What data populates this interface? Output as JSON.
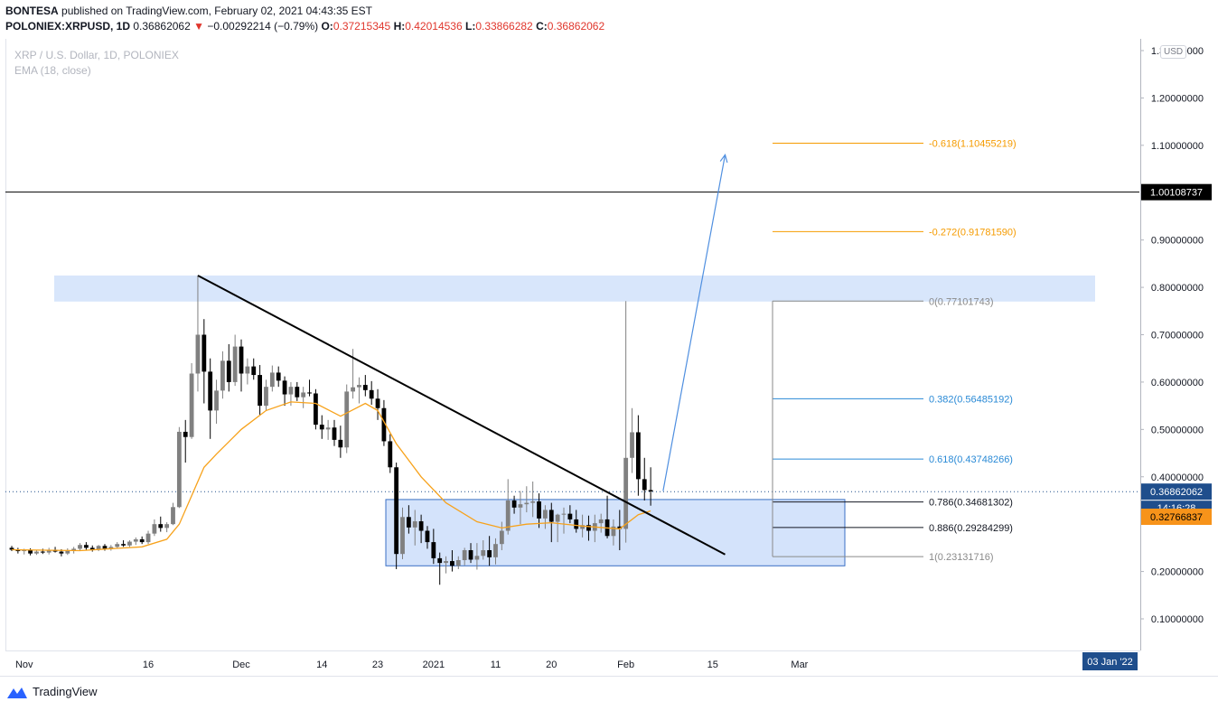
{
  "header": {
    "publisher": "BONTESA",
    "published_text": "published on TradingView.com, February 02, 2021 04:43:35 EST",
    "symbol": "POLONIEX:XRPUSD, 1D",
    "last": "0.36862062",
    "change_arrow": "▼",
    "change": "−0.00292214 (−0.79%)",
    "o_label": "O:",
    "o": "0.37215345",
    "h_label": "H:",
    "h": "0.42014536",
    "l_label": "L:",
    "l": "0.33866282",
    "c_label": "C:",
    "c": "0.36862062"
  },
  "legend": {
    "title": "XRP / U.S. Dollar, 1D, POLONIEX",
    "indicator": "EMA (18, close)"
  },
  "currency_button": "USD",
  "price_axis": {
    "ticks": [
      "1.30000000",
      "1.20000000",
      "1.10000000",
      "0.90000000",
      "0.80000000",
      "0.70000000",
      "0.60000000",
      "0.50000000",
      "0.40000000",
      "0.20000000",
      "0.10000000"
    ],
    "markers": {
      "resistance": "1.00108737",
      "last_price": "0.36862062",
      "countdown": "14:16:28",
      "ema": "0.32766837"
    }
  },
  "time_axis": {
    "labels": [
      "Nov",
      "16",
      "Dec",
      "14",
      "23",
      "2021",
      "11",
      "20",
      "Feb",
      "15",
      "Mar"
    ],
    "cursor_label": "03 Jan '22"
  },
  "fib_levels": [
    {
      "label": "-0.618(1.10455219)",
      "value": 1.10455219
    },
    {
      "label": "-0.272(0.91781590)",
      "value": 0.9178159
    },
    {
      "label": "0(0.77101743)",
      "value": 0.77101743
    },
    {
      "label": "0.382(0.56485192)",
      "value": 0.56485192
    },
    {
      "label": "0.618(0.43748266)",
      "value": 0.43748266
    },
    {
      "label": "0.786(0.34681302)",
      "value": 0.34681302
    },
    {
      "label": "0.886(0.29284299)",
      "value": 0.29284299
    },
    {
      "label": "1(0.23131716)",
      "value": 0.23131716
    }
  ],
  "colors": {
    "up_candle": "#808080",
    "down_candle": "#000000",
    "ema": "#f7a21b",
    "zone": "#d4e3fb",
    "fib_orange": "#f59b00",
    "fib_blue": "#2a8ad6",
    "fib_black": "#131722",
    "fib_grey": "#8a8a8a",
    "arrow": "#4f8fe0",
    "price_marker": "#1f4e8c",
    "ema_marker": "#f7931a"
  },
  "chart_data": {
    "type": "candlestick",
    "symbol": "XRP / U.S. Dollar",
    "interval": "1D",
    "ylim": [
      0.0,
      1.32
    ],
    "resistance_level": 1.00108737,
    "x_start": "2020-10-25",
    "x_end": "2021-03-15",
    "supply_zone": {
      "from": "2020-10-31",
      "to": "2021-02-15",
      "low": 0.77,
      "high": 0.825
    },
    "demand_zone": {
      "from": "2020-12-15",
      "to": "2021-02-11",
      "low": 0.212,
      "high": 0.352
    },
    "trendline": {
      "from": {
        "date": "2020-11-24",
        "price": 0.825
      },
      "to": {
        "date": "2021-02-17",
        "price": 0.236
      }
    },
    "projection_arrow": {
      "from": {
        "date": "2021-02-07",
        "price": 0.37
      },
      "to": {
        "date": "2021-02-17",
        "price": 1.08
      }
    },
    "fib_anchor": {
      "date": "2021-02-01",
      "high": 0.77101743,
      "low": 0.23131716
    },
    "candles": [
      {
        "date": "2020-10-25",
        "open": 0.25,
        "high": 0.254,
        "low": 0.243,
        "close": 0.246
      },
      {
        "date": "2020-10-26",
        "open": 0.246,
        "high": 0.25,
        "low": 0.238,
        "close": 0.243
      },
      {
        "date": "2020-10-27",
        "open": 0.243,
        "high": 0.248,
        "low": 0.236,
        "close": 0.245
      },
      {
        "date": "2020-10-28",
        "open": 0.245,
        "high": 0.249,
        "low": 0.234,
        "close": 0.238
      },
      {
        "date": "2020-10-29",
        "open": 0.238,
        "high": 0.246,
        "low": 0.235,
        "close": 0.242
      },
      {
        "date": "2020-10-30",
        "open": 0.242,
        "high": 0.248,
        "low": 0.237,
        "close": 0.24
      },
      {
        "date": "2020-10-31",
        "open": 0.24,
        "high": 0.25,
        "low": 0.236,
        "close": 0.246
      },
      {
        "date": "2020-11-01",
        "open": 0.246,
        "high": 0.252,
        "low": 0.24,
        "close": 0.242
      },
      {
        "date": "2020-11-02",
        "open": 0.242,
        "high": 0.247,
        "low": 0.232,
        "close": 0.238
      },
      {
        "date": "2020-11-03",
        "open": 0.238,
        "high": 0.249,
        "low": 0.235,
        "close": 0.245
      },
      {
        "date": "2020-11-04",
        "open": 0.245,
        "high": 0.252,
        "low": 0.238,
        "close": 0.248
      },
      {
        "date": "2020-11-05",
        "open": 0.248,
        "high": 0.26,
        "low": 0.244,
        "close": 0.256
      },
      {
        "date": "2020-11-06",
        "open": 0.256,
        "high": 0.262,
        "low": 0.246,
        "close": 0.25
      },
      {
        "date": "2020-11-07",
        "open": 0.25,
        "high": 0.255,
        "low": 0.242,
        "close": 0.246
      },
      {
        "date": "2020-11-08",
        "open": 0.246,
        "high": 0.256,
        "low": 0.243,
        "close": 0.254
      },
      {
        "date": "2020-11-09",
        "open": 0.254,
        "high": 0.258,
        "low": 0.244,
        "close": 0.248
      },
      {
        "date": "2020-11-10",
        "open": 0.248,
        "high": 0.256,
        "low": 0.244,
        "close": 0.252
      },
      {
        "date": "2020-11-11",
        "open": 0.252,
        "high": 0.262,
        "low": 0.248,
        "close": 0.258
      },
      {
        "date": "2020-11-12",
        "open": 0.258,
        "high": 0.266,
        "low": 0.252,
        "close": 0.255
      },
      {
        "date": "2020-11-13",
        "open": 0.255,
        "high": 0.266,
        "low": 0.252,
        "close": 0.263
      },
      {
        "date": "2020-11-14",
        "open": 0.263,
        "high": 0.272,
        "low": 0.256,
        "close": 0.268
      },
      {
        "date": "2020-11-15",
        "open": 0.268,
        "high": 0.274,
        "low": 0.258,
        "close": 0.262
      },
      {
        "date": "2020-11-16",
        "open": 0.262,
        "high": 0.286,
        "low": 0.258,
        "close": 0.28
      },
      {
        "date": "2020-11-17",
        "open": 0.28,
        "high": 0.31,
        "low": 0.275,
        "close": 0.3
      },
      {
        "date": "2020-11-18",
        "open": 0.3,
        "high": 0.316,
        "low": 0.284,
        "close": 0.292
      },
      {
        "date": "2020-11-19",
        "open": 0.292,
        "high": 0.304,
        "low": 0.283,
        "close": 0.3
      },
      {
        "date": "2020-11-20",
        "open": 0.3,
        "high": 0.345,
        "low": 0.298,
        "close": 0.336
      },
      {
        "date": "2020-11-21",
        "open": 0.336,
        "high": 0.505,
        "low": 0.334,
        "close": 0.495
      },
      {
        "date": "2020-11-22",
        "open": 0.495,
        "high": 0.52,
        "low": 0.43,
        "close": 0.484
      },
      {
        "date": "2020-11-23",
        "open": 0.484,
        "high": 0.64,
        "low": 0.48,
        "close": 0.618
      },
      {
        "date": "2020-11-24",
        "open": 0.618,
        "high": 0.825,
        "low": 0.58,
        "close": 0.7
      },
      {
        "date": "2020-11-25",
        "open": 0.7,
        "high": 0.733,
        "low": 0.555,
        "close": 0.622
      },
      {
        "date": "2020-11-26",
        "open": 0.622,
        "high": 0.65,
        "low": 0.48,
        "close": 0.54
      },
      {
        "date": "2020-11-27",
        "open": 0.54,
        "high": 0.605,
        "low": 0.512,
        "close": 0.582
      },
      {
        "date": "2020-11-28",
        "open": 0.582,
        "high": 0.665,
        "low": 0.565,
        "close": 0.645
      },
      {
        "date": "2020-11-29",
        "open": 0.645,
        "high": 0.68,
        "low": 0.58,
        "close": 0.6
      },
      {
        "date": "2020-11-30",
        "open": 0.6,
        "high": 0.7,
        "low": 0.592,
        "close": 0.675
      },
      {
        "date": "2020-12-01",
        "open": 0.675,
        "high": 0.69,
        "low": 0.58,
        "close": 0.618
      },
      {
        "date": "2020-12-02",
        "open": 0.618,
        "high": 0.65,
        "low": 0.595,
        "close": 0.633
      },
      {
        "date": "2020-12-03",
        "open": 0.633,
        "high": 0.65,
        "low": 0.605,
        "close": 0.615
      },
      {
        "date": "2020-12-04",
        "open": 0.615,
        "high": 0.636,
        "low": 0.53,
        "close": 0.55
      },
      {
        "date": "2020-12-05",
        "open": 0.55,
        "high": 0.605,
        "low": 0.54,
        "close": 0.59
      },
      {
        "date": "2020-12-06",
        "open": 0.59,
        "high": 0.635,
        "low": 0.58,
        "close": 0.62
      },
      {
        "date": "2020-12-07",
        "open": 0.62,
        "high": 0.633,
        "low": 0.59,
        "close": 0.603
      },
      {
        "date": "2020-12-08",
        "open": 0.603,
        "high": 0.612,
        "low": 0.55,
        "close": 0.574
      },
      {
        "date": "2020-12-09",
        "open": 0.574,
        "high": 0.6,
        "low": 0.55,
        "close": 0.59
      },
      {
        "date": "2020-12-10",
        "open": 0.59,
        "high": 0.6,
        "low": 0.56,
        "close": 0.568
      },
      {
        "date": "2020-12-11",
        "open": 0.568,
        "high": 0.59,
        "low": 0.545,
        "close": 0.578
      },
      {
        "date": "2020-12-12",
        "open": 0.578,
        "high": 0.605,
        "low": 0.57,
        "close": 0.576
      },
      {
        "date": "2020-12-13",
        "open": 0.576,
        "high": 0.585,
        "low": 0.5,
        "close": 0.51
      },
      {
        "date": "2020-12-14",
        "open": 0.51,
        "high": 0.53,
        "low": 0.48,
        "close": 0.5
      },
      {
        "date": "2020-12-15",
        "open": 0.5,
        "high": 0.52,
        "low": 0.478,
        "close": 0.504
      },
      {
        "date": "2020-12-16",
        "open": 0.504,
        "high": 0.52,
        "low": 0.465,
        "close": 0.478
      },
      {
        "date": "2020-12-17",
        "open": 0.478,
        "high": 0.508,
        "low": 0.44,
        "close": 0.462
      },
      {
        "date": "2020-12-18",
        "open": 0.462,
        "high": 0.595,
        "low": 0.45,
        "close": 0.58
      },
      {
        "date": "2020-12-19",
        "open": 0.58,
        "high": 0.67,
        "low": 0.565,
        "close": 0.589
      },
      {
        "date": "2020-12-20",
        "open": 0.589,
        "high": 0.61,
        "low": 0.555,
        "close": 0.594
      },
      {
        "date": "2020-12-21",
        "open": 0.594,
        "high": 0.615,
        "low": 0.57,
        "close": 0.583
      },
      {
        "date": "2020-12-22",
        "open": 0.583,
        "high": 0.602,
        "low": 0.552,
        "close": 0.565
      },
      {
        "date": "2020-12-23",
        "open": 0.565,
        "high": 0.585,
        "low": 0.52,
        "close": 0.545
      },
      {
        "date": "2020-12-24",
        "open": 0.545,
        "high": 0.562,
        "low": 0.465,
        "close": 0.475
      },
      {
        "date": "2020-12-25",
        "open": 0.475,
        "high": 0.49,
        "low": 0.408,
        "close": 0.42
      },
      {
        "date": "2020-12-26",
        "open": 0.42,
        "high": 0.43,
        "low": 0.205,
        "close": 0.237
      },
      {
        "date": "2020-12-27",
        "open": 0.237,
        "high": 0.335,
        "low": 0.226,
        "close": 0.315
      },
      {
        "date": "2020-12-28",
        "open": 0.315,
        "high": 0.34,
        "low": 0.28,
        "close": 0.293
      },
      {
        "date": "2020-12-29",
        "open": 0.293,
        "high": 0.33,
        "low": 0.255,
        "close": 0.306
      },
      {
        "date": "2020-12-30",
        "open": 0.306,
        "high": 0.32,
        "low": 0.26,
        "close": 0.286
      },
      {
        "date": "2020-12-31",
        "open": 0.286,
        "high": 0.296,
        "low": 0.248,
        "close": 0.262
      },
      {
        "date": "2021-01-01",
        "open": 0.262,
        "high": 0.29,
        "low": 0.216,
        "close": 0.228
      },
      {
        "date": "2021-01-02",
        "open": 0.228,
        "high": 0.24,
        "low": 0.172,
        "close": 0.218
      },
      {
        "date": "2021-01-03",
        "open": 0.218,
        "high": 0.232,
        "low": 0.196,
        "close": 0.222
      },
      {
        "date": "2021-01-04",
        "open": 0.222,
        "high": 0.245,
        "low": 0.2,
        "close": 0.212
      },
      {
        "date": "2021-01-05",
        "open": 0.212,
        "high": 0.232,
        "low": 0.205,
        "close": 0.224
      },
      {
        "date": "2021-01-06",
        "open": 0.224,
        "high": 0.25,
        "low": 0.213,
        "close": 0.245
      },
      {
        "date": "2021-01-07",
        "open": 0.245,
        "high": 0.26,
        "low": 0.218,
        "close": 0.225
      },
      {
        "date": "2021-01-08",
        "open": 0.225,
        "high": 0.26,
        "low": 0.204,
        "close": 0.233
      },
      {
        "date": "2021-01-09",
        "open": 0.233,
        "high": 0.266,
        "low": 0.225,
        "close": 0.245
      },
      {
        "date": "2021-01-10",
        "open": 0.245,
        "high": 0.275,
        "low": 0.212,
        "close": 0.23
      },
      {
        "date": "2021-01-11",
        "open": 0.23,
        "high": 0.27,
        "low": 0.215,
        "close": 0.258
      },
      {
        "date": "2021-01-12",
        "open": 0.258,
        "high": 0.305,
        "low": 0.245,
        "close": 0.286
      },
      {
        "date": "2021-01-13",
        "open": 0.286,
        "high": 0.395,
        "low": 0.278,
        "close": 0.35
      },
      {
        "date": "2021-01-14",
        "open": 0.35,
        "high": 0.36,
        "low": 0.322,
        "close": 0.335
      },
      {
        "date": "2021-01-15",
        "open": 0.335,
        "high": 0.37,
        "low": 0.3,
        "close": 0.342
      },
      {
        "date": "2021-01-16",
        "open": 0.342,
        "high": 0.38,
        "low": 0.325,
        "close": 0.345
      },
      {
        "date": "2021-01-17",
        "open": 0.345,
        "high": 0.39,
        "low": 0.315,
        "close": 0.348
      },
      {
        "date": "2021-01-18",
        "open": 0.348,
        "high": 0.365,
        "low": 0.292,
        "close": 0.312
      },
      {
        "date": "2021-01-19",
        "open": 0.312,
        "high": 0.34,
        "low": 0.29,
        "close": 0.33
      },
      {
        "date": "2021-01-20",
        "open": 0.33,
        "high": 0.345,
        "low": 0.262,
        "close": 0.305
      },
      {
        "date": "2021-01-21",
        "open": 0.305,
        "high": 0.322,
        "low": 0.262,
        "close": 0.32
      },
      {
        "date": "2021-01-22",
        "open": 0.32,
        "high": 0.335,
        "low": 0.28,
        "close": 0.322
      },
      {
        "date": "2021-01-23",
        "open": 0.322,
        "high": 0.34,
        "low": 0.302,
        "close": 0.31
      },
      {
        "date": "2021-01-24",
        "open": 0.31,
        "high": 0.33,
        "low": 0.282,
        "close": 0.29
      },
      {
        "date": "2021-01-25",
        "open": 0.29,
        "high": 0.32,
        "low": 0.272,
        "close": 0.298
      },
      {
        "date": "2021-01-26",
        "open": 0.298,
        "high": 0.318,
        "low": 0.265,
        "close": 0.286
      },
      {
        "date": "2021-01-27",
        "open": 0.286,
        "high": 0.32,
        "low": 0.262,
        "close": 0.302
      },
      {
        "date": "2021-01-28",
        "open": 0.302,
        "high": 0.322,
        "low": 0.282,
        "close": 0.31
      },
      {
        "date": "2021-01-29",
        "open": 0.31,
        "high": 0.36,
        "low": 0.27,
        "close": 0.275
      },
      {
        "date": "2021-01-30",
        "open": 0.275,
        "high": 0.31,
        "low": 0.255,
        "close": 0.295
      },
      {
        "date": "2021-01-31",
        "open": 0.295,
        "high": 0.33,
        "low": 0.245,
        "close": 0.29
      },
      {
        "date": "2021-02-01",
        "open": 0.29,
        "high": 0.771,
        "low": 0.261,
        "close": 0.44
      },
      {
        "date": "2021-02-02",
        "open": 0.44,
        "high": 0.545,
        "low": 0.408,
        "close": 0.494
      },
      {
        "date": "2021-02-03",
        "open": 0.494,
        "high": 0.53,
        "low": 0.36,
        "close": 0.395
      },
      {
        "date": "2021-02-04",
        "open": 0.395,
        "high": 0.44,
        "low": 0.35,
        "close": 0.372
      },
      {
        "date": "2021-02-05",
        "open": 0.372,
        "high": 0.42,
        "low": 0.339,
        "close": 0.369
      }
    ],
    "ema": [
      {
        "date": "2020-10-25",
        "value": 0.246
      },
      {
        "date": "2020-11-05",
        "value": 0.244
      },
      {
        "date": "2020-11-15",
        "value": 0.252
      },
      {
        "date": "2020-11-19",
        "value": 0.268
      },
      {
        "date": "2020-11-21",
        "value": 0.3
      },
      {
        "date": "2020-11-23",
        "value": 0.36
      },
      {
        "date": "2020-11-25",
        "value": 0.42
      },
      {
        "date": "2020-11-27",
        "value": 0.448
      },
      {
        "date": "2020-12-01",
        "value": 0.5
      },
      {
        "date": "2020-12-05",
        "value": 0.54
      },
      {
        "date": "2020-12-09",
        "value": 0.558
      },
      {
        "date": "2020-12-13",
        "value": 0.555
      },
      {
        "date": "2020-12-17",
        "value": 0.528
      },
      {
        "date": "2020-12-21",
        "value": 0.555
      },
      {
        "date": "2020-12-23",
        "value": 0.54
      },
      {
        "date": "2020-12-26",
        "value": 0.47
      },
      {
        "date": "2020-12-30",
        "value": 0.4
      },
      {
        "date": "2021-01-03",
        "value": 0.345
      },
      {
        "date": "2021-01-08",
        "value": 0.305
      },
      {
        "date": "2021-01-12",
        "value": 0.292
      },
      {
        "date": "2021-01-16",
        "value": 0.3
      },
      {
        "date": "2021-01-20",
        "value": 0.303
      },
      {
        "date": "2021-01-25",
        "value": 0.296
      },
      {
        "date": "2021-01-31",
        "value": 0.29
      },
      {
        "date": "2021-02-03",
        "value": 0.32
      },
      {
        "date": "2021-02-05",
        "value": 0.328
      }
    ]
  }
}
